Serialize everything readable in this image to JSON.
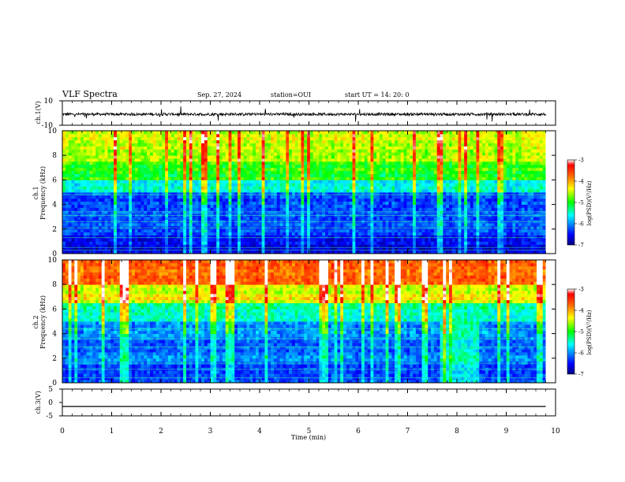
{
  "header": {
    "title": "VLF Spectra",
    "date": "Sep. 27, 2024",
    "station": "station=OUI",
    "start_ut": "start  UT  =   14: 20: 0"
  },
  "panels": {
    "ch1_wave": {
      "ylabel": "ch.1(V)",
      "yticks": [
        "10",
        "-10"
      ]
    },
    "ch1_spec": {
      "ylabel_ch": "ch.1",
      "ylabel_freq": "Frequency  (kHz)",
      "yticks": [
        "0",
        "2",
        "4",
        "6",
        "8",
        "10"
      ]
    },
    "ch2_spec": {
      "ylabel_ch": "ch.2",
      "ylabel_freq": "Frequency  (kHz)",
      "yticks": [
        "0",
        "2",
        "4",
        "6",
        "8",
        "10"
      ]
    },
    "ch3_wave": {
      "ylabel": "ch.3(V)",
      "yticks": [
        "5",
        "0",
        "-5"
      ]
    }
  },
  "xaxis": {
    "label": "Time  (min)",
    "ticks": [
      "0",
      "1",
      "2",
      "3",
      "4",
      "5",
      "6",
      "7",
      "8",
      "9",
      "10"
    ]
  },
  "colorbar": {
    "label": "log(PSD)(V²/Hz)",
    "ticks": [
      "-3",
      "-4",
      "-5",
      "-6",
      "-7"
    ],
    "colors": [
      "#000080",
      "#0000ff",
      "#00ffff",
      "#00ff00",
      "#ffff00",
      "#ff8000",
      "#ff0000",
      "#ffffff"
    ]
  },
  "chart_data": [
    {
      "type": "line",
      "title": "VLF Spectra",
      "ylabel": "ch.1(V)",
      "xlabel": "Time  (min)",
      "xlim": [
        0,
        10
      ],
      "ylim": [
        -10,
        10
      ],
      "series": [
        {
          "x": [
            0,
            9.8
          ],
          "y": [
            -1,
            -1
          ]
        }
      ]
    },
    {
      "type": "heatmap",
      "ylabel": "Frequency  (kHz)",
      "xlim": [
        0,
        10
      ],
      "ylim": [
        0,
        10
      ],
      "zlim": [
        -7,
        -3
      ],
      "bands_khz": [
        [
          0,
          1.5,
          -6.6
        ],
        [
          1.5,
          4.0,
          -6.2
        ],
        [
          4.0,
          5.0,
          -6.3
        ],
        [
          5.0,
          6.0,
          -5.6
        ],
        [
          6.0,
          7.5,
          -5.0
        ],
        [
          7.5,
          10,
          -4.5
        ]
      ]
    },
    {
      "type": "heatmap",
      "ylabel": "Frequency  (kHz)",
      "xlim": [
        0,
        10
      ],
      "ylim": [
        0,
        10
      ],
      "zlim": [
        -7,
        -3
      ],
      "bands_khz": [
        [
          0,
          1.5,
          -6.3
        ],
        [
          1.5,
          5.0,
          -6.1
        ],
        [
          5.0,
          6.5,
          -5.4
        ],
        [
          6.5,
          8.0,
          -4.4
        ],
        [
          8.0,
          10,
          -3.7
        ]
      ]
    },
    {
      "type": "line",
      "ylabel": "ch.3(V)",
      "xlabel": "Time  (min)",
      "xlim": [
        0,
        10
      ],
      "ylim": [
        -5,
        5
      ],
      "series": [
        {
          "x": [
            0,
            9.8
          ],
          "y": [
            -1.5,
            -1.5
          ]
        }
      ]
    }
  ]
}
